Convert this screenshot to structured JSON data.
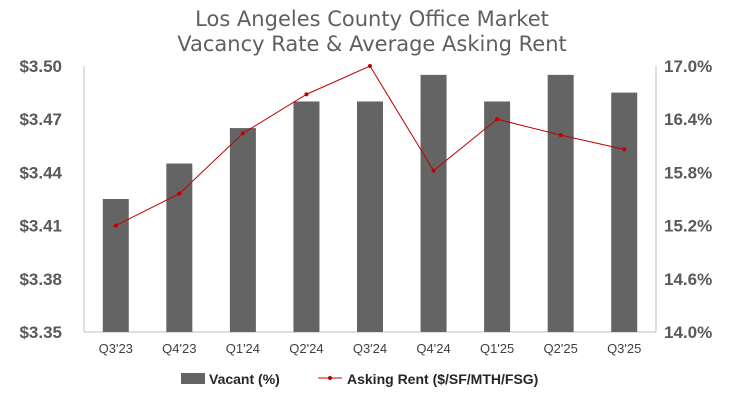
{
  "chart_data": {
    "type": "bar",
    "title": "Los Angeles County Office Market",
    "subtitle": "Vacancy Rate & Average Asking Rent",
    "categories": [
      "Q3'23",
      "Q4'23",
      "Q1'24",
      "Q2'24",
      "Q3'24",
      "Q4'24",
      "Q1'25",
      "Q2'25",
      "Q3'25"
    ],
    "y_left": {
      "min": 3.35,
      "max": 3.5,
      "ticks": [
        "$3.50",
        "$3.47",
        "$3.44",
        "$3.41",
        "$3.38",
        "$3.35"
      ],
      "tick_values": [
        3.5,
        3.47,
        3.44,
        3.41,
        3.38,
        3.35
      ]
    },
    "y_right": {
      "min": 14.0,
      "max": 17.0,
      "ticks": [
        "17.0%",
        "16.4%",
        "15.8%",
        "15.2%",
        "14.6%",
        "14.0%"
      ],
      "tick_values": [
        17.0,
        16.4,
        15.8,
        15.2,
        14.6,
        14.0
      ]
    },
    "grid": false,
    "legend_position": "bottom",
    "series": [
      {
        "name": "Vacant (%)",
        "type": "bar",
        "axis": "right",
        "color": "#646464",
        "values": [
          15.5,
          15.9,
          16.3,
          16.6,
          16.6,
          16.9,
          16.6,
          16.9,
          16.7
        ]
      },
      {
        "name": "Asking Rent ($/SF/MTH/FSG)",
        "type": "line",
        "axis": "left",
        "color": "#c00000",
        "values": [
          3.41,
          3.428,
          3.462,
          3.484,
          3.5,
          3.441,
          3.47,
          3.461,
          3.453
        ]
      }
    ]
  }
}
